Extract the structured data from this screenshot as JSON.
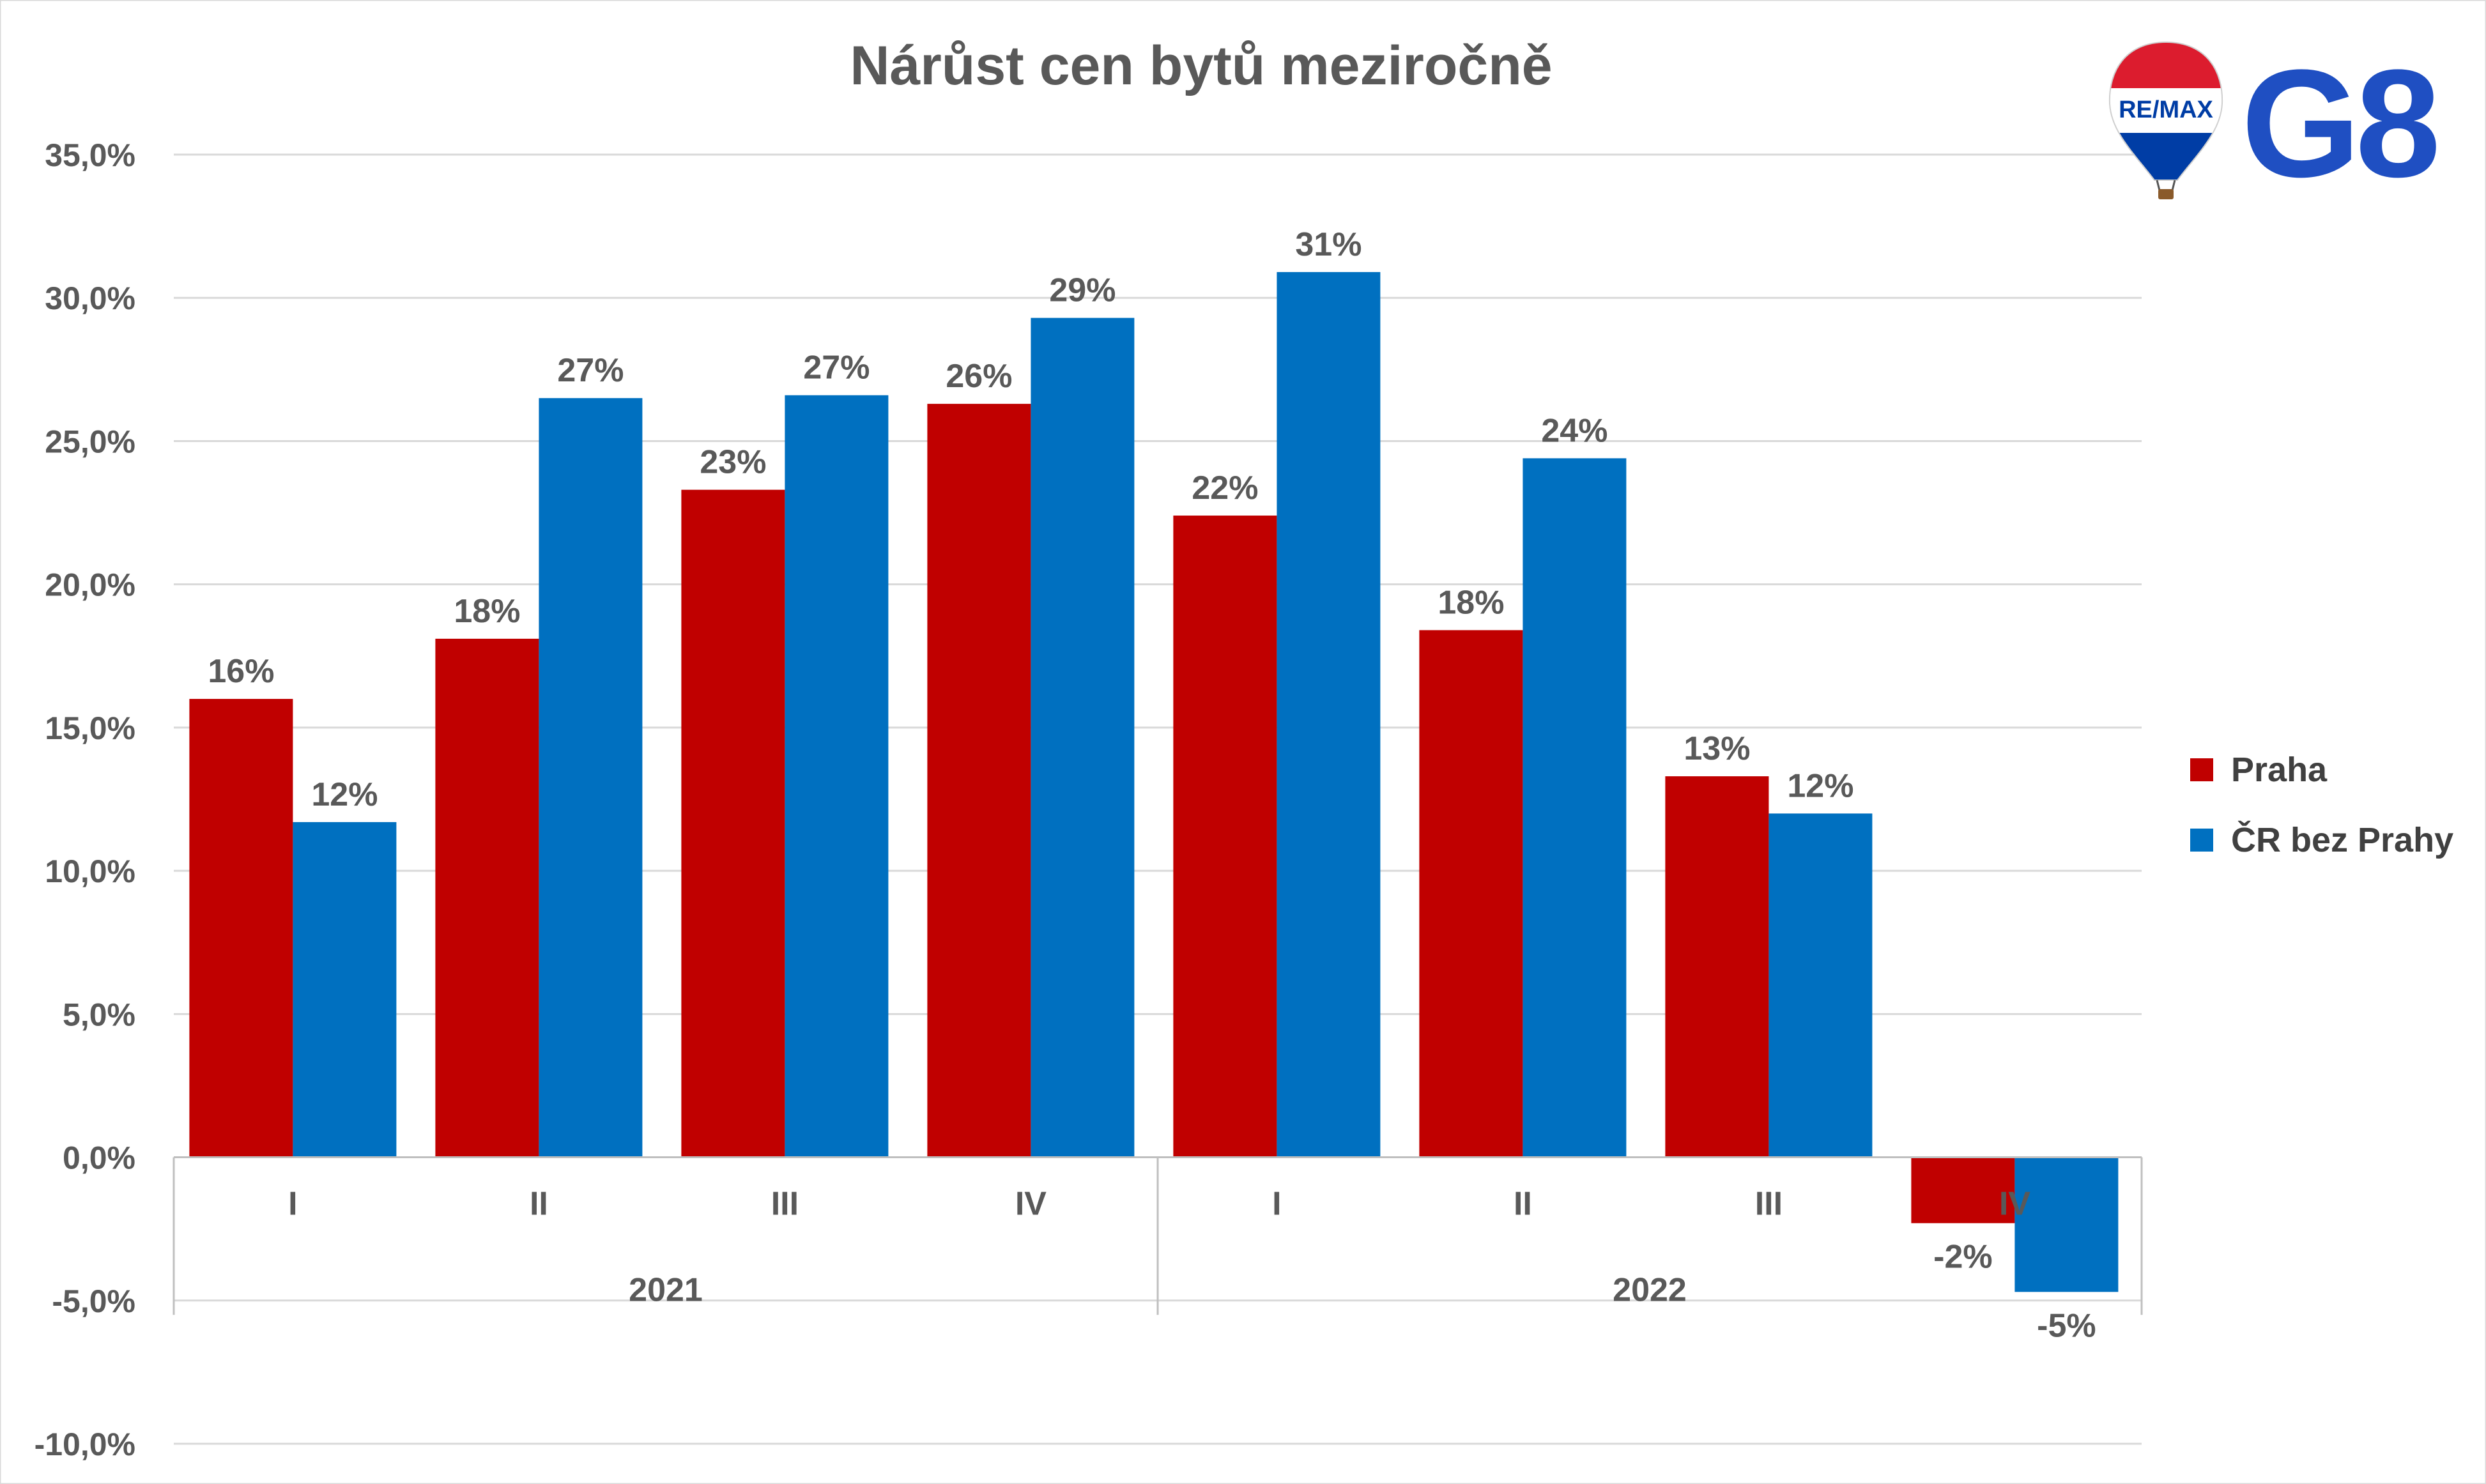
{
  "logo": {
    "balloon_text": "RE/MAX",
    "brand_text": "G8"
  },
  "chart_data": {
    "type": "bar",
    "title": "Nárůst cen bytů meziročně",
    "categories": [
      "I",
      "II",
      "III",
      "IV",
      "I",
      "II",
      "III",
      "IV"
    ],
    "groups": [
      {
        "label": "2021",
        "categories": [
          "I",
          "II",
          "III",
          "IV"
        ]
      },
      {
        "label": "2022",
        "categories": [
          "I",
          "II",
          "III",
          "IV"
        ]
      }
    ],
    "series": [
      {
        "name": "Praha",
        "color": "#C00000",
        "values": [
          16.0,
          18.1,
          23.3,
          26.3,
          22.4,
          18.4,
          13.3,
          -2.3
        ],
        "labels": [
          "16%",
          "18%",
          "23%",
          "26%",
          "22%",
          "18%",
          "13%",
          "-2%"
        ]
      },
      {
        "name": "ČR bez Prahy",
        "color": "#0070C0",
        "values": [
          11.7,
          26.5,
          26.6,
          29.3,
          30.9,
          24.4,
          12.0,
          -4.7
        ],
        "labels": [
          "12%",
          "27%",
          "27%",
          "29%",
          "31%",
          "24%",
          "12%",
          "-5%"
        ]
      }
    ],
    "ylim": [
      -10,
      35
    ],
    "yticks": [
      "-10,0%",
      "-5,0%",
      "0,0%",
      "5,0%",
      "10,0%",
      "15,0%",
      "20,0%",
      "25,0%",
      "30,0%",
      "35,0%"
    ],
    "ytick_values": [
      -10,
      -5,
      0,
      5,
      10,
      15,
      20,
      25,
      30,
      35
    ],
    "grid": true,
    "legend_position": "right"
  }
}
